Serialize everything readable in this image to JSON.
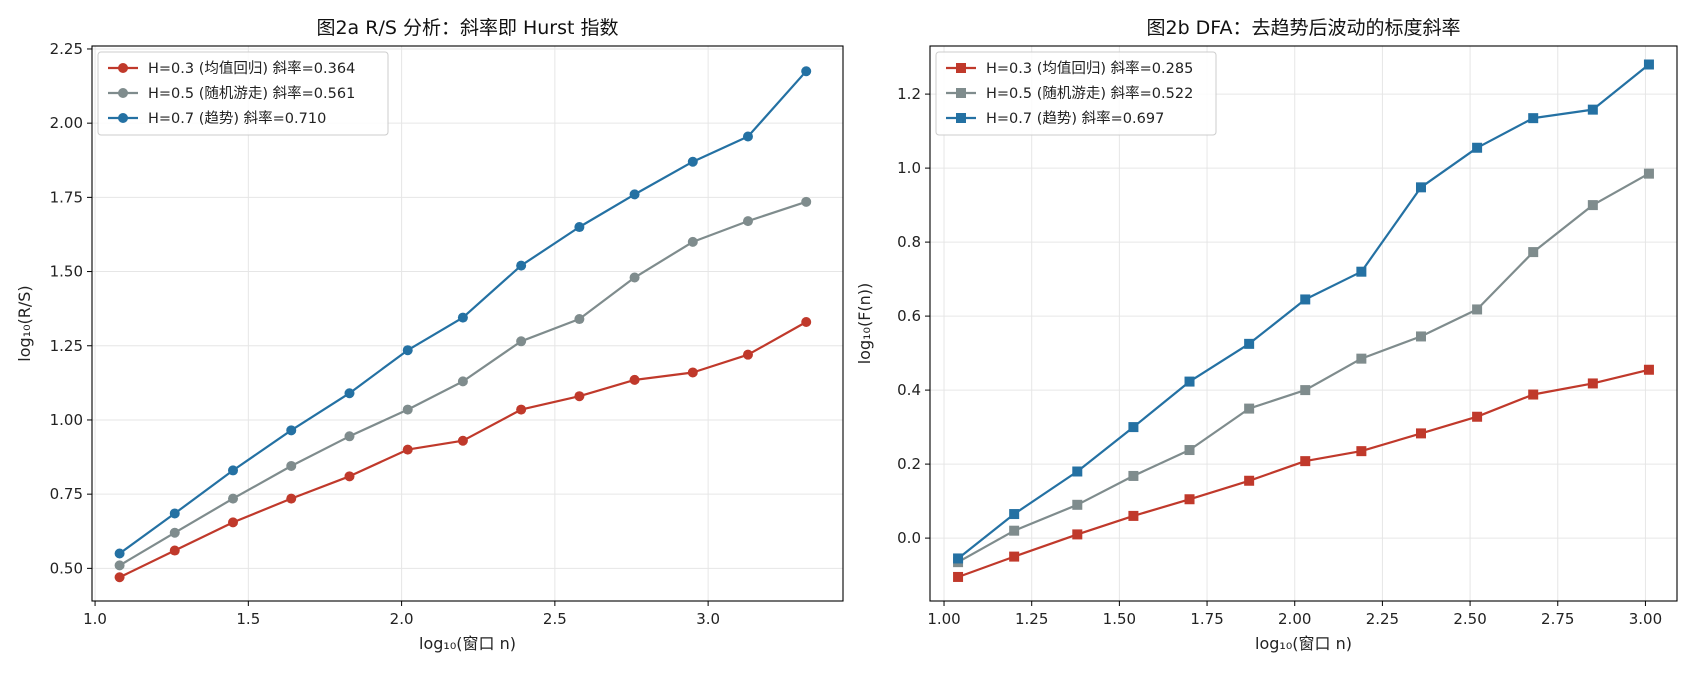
{
  "chart_data": [
    {
      "type": "line",
      "title": "图2a  R/S 分析：斜率即 Hurst 指数",
      "xlabel": "log₁₀(窗口 n)",
      "ylabel": "log₁₀(R/S)",
      "xlim": [
        0.99,
        3.44
      ],
      "ylim": [
        0.39,
        2.26
      ],
      "xticks": [
        1.0,
        1.5,
        2.0,
        2.5,
        3.0
      ],
      "yticks": [
        0.5,
        0.75,
        1.0,
        1.25,
        1.5,
        1.75,
        2.0,
        2.25
      ],
      "xtick_labels": [
        "1.0",
        "1.5",
        "2.0",
        "2.5",
        "3.0"
      ],
      "ytick_labels": [
        "0.50",
        "0.75",
        "1.00",
        "1.25",
        "1.50",
        "1.75",
        "2.00",
        "2.25"
      ],
      "grid": true,
      "legend_position": "top-left",
      "marker": "circle",
      "x": [
        1.08,
        1.26,
        1.45,
        1.64,
        1.83,
        2.02,
        2.2,
        2.39,
        2.58,
        2.76,
        2.95,
        3.13,
        3.32
      ],
      "series": [
        {
          "name": "H=0.3 (均值回归)  斜率=0.364",
          "color": "#c0392b",
          "values": [
            0.47,
            0.56,
            0.655,
            0.735,
            0.81,
            0.9,
            0.93,
            1.035,
            1.08,
            1.135,
            1.16,
            1.22,
            1.33
          ]
        },
        {
          "name": "H=0.5 (随机游走)  斜率=0.561",
          "color": "#7f8c8d",
          "values": [
            0.51,
            0.62,
            0.735,
            0.845,
            0.945,
            1.035,
            1.13,
            1.265,
            1.34,
            1.48,
            1.6,
            1.67,
            1.735
          ]
        },
        {
          "name": "H=0.7 (趋势)  斜率=0.710",
          "color": "#2471a3",
          "values": [
            0.55,
            0.685,
            0.83,
            0.965,
            1.09,
            1.235,
            1.345,
            1.52,
            1.65,
            1.76,
            1.87,
            1.955,
            2.175
          ]
        }
      ]
    },
    {
      "type": "line",
      "title": "图2b  DFA：去趋势后波动的标度斜率",
      "xlabel": "log₁₀(窗口 n)",
      "ylabel": "log₁₀(F(n))",
      "xlim": [
        0.96,
        3.09
      ],
      "ylim": [
        -0.17,
        1.33
      ],
      "xticks": [
        1.0,
        1.25,
        1.5,
        1.75,
        2.0,
        2.25,
        2.5,
        2.75,
        3.0
      ],
      "yticks": [
        0.0,
        0.2,
        0.4,
        0.6,
        0.8,
        1.0,
        1.2
      ],
      "xtick_labels": [
        "1.00",
        "1.25",
        "1.50",
        "1.75",
        "2.00",
        "2.25",
        "2.50",
        "2.75",
        "3.00"
      ],
      "ytick_labels": [
        "0.0",
        "0.2",
        "0.4",
        "0.6",
        "0.8",
        "1.0",
        "1.2"
      ],
      "grid": true,
      "legend_position": "top-left",
      "marker": "square",
      "x": [
        1.04,
        1.2,
        1.38,
        1.54,
        1.7,
        1.87,
        2.03,
        2.19,
        2.36,
        2.52,
        2.68,
        2.85,
        3.01
      ],
      "series": [
        {
          "name": "H=0.3 (均值回归)  斜率=0.285",
          "color": "#c0392b",
          "values": [
            -0.105,
            -0.05,
            0.01,
            0.06,
            0.105,
            0.155,
            0.208,
            0.235,
            0.283,
            0.328,
            0.388,
            0.418,
            0.455
          ]
        },
        {
          "name": "H=0.5 (随机游走)  斜率=0.522",
          "color": "#7f8c8d",
          "values": [
            -0.065,
            0.02,
            0.09,
            0.168,
            0.238,
            0.35,
            0.4,
            0.485,
            0.545,
            0.618,
            0.773,
            0.9,
            0.985
          ]
        },
        {
          "name": "H=0.7 (趋势)  斜率=0.697",
          "color": "#2471a3",
          "values": [
            -0.055,
            0.065,
            0.18,
            0.3,
            0.423,
            0.525,
            0.645,
            0.72,
            0.948,
            1.055,
            1.135,
            1.158,
            1.28
          ]
        }
      ]
    }
  ]
}
